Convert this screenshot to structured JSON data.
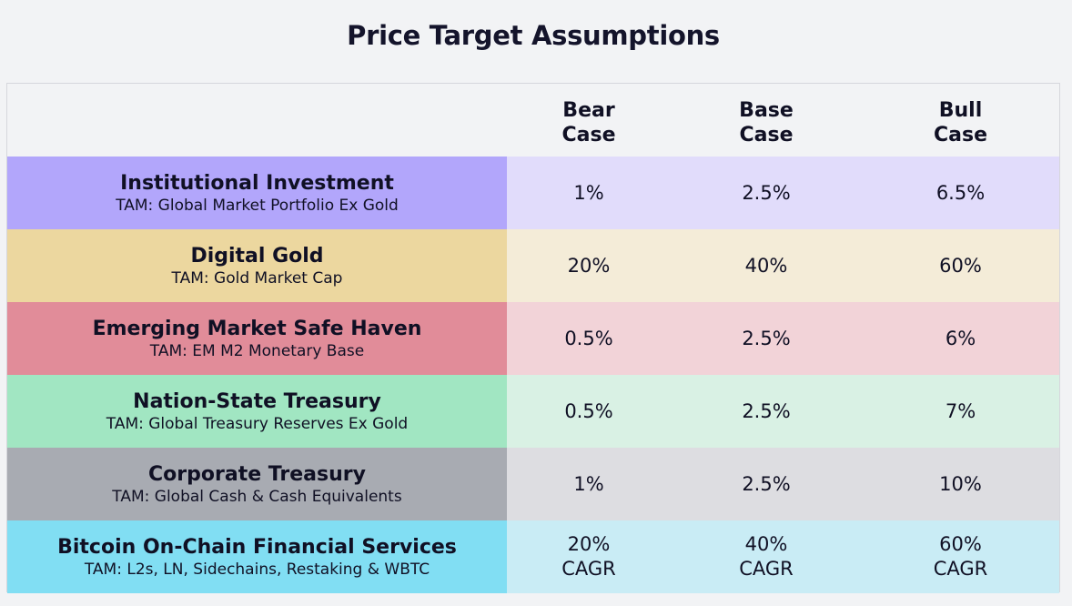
{
  "title": "Price Target Assumptions",
  "header": {
    "bear": [
      "Bear",
      "Case"
    ],
    "base": [
      "Base",
      "Case"
    ],
    "bull": [
      "Bull",
      "Case"
    ]
  },
  "rows": [
    {
      "name": "Institutional Investment",
      "tam": "TAM: Global Market Portfolio Ex Gold",
      "bear": "1%",
      "base": "2.5%",
      "bull": "6.5%",
      "label_color": "#b2a6fb",
      "value_color": "#e1dcfb"
    },
    {
      "name": "Digital Gold",
      "tam": "TAM: Gold Market Cap",
      "bear": "20%",
      "base": "40%",
      "bull": "60%",
      "label_color": "#ecd79f",
      "value_color": "#f4ecd8"
    },
    {
      "name": "Emerging Market Safe Haven",
      "tam": "TAM: EM M2 Monetary Base",
      "bear": "0.5%",
      "base": "2.5%",
      "bull": "6%",
      "label_color": "#e18c99",
      "value_color": "#f2d3d8"
    },
    {
      "name": "Nation-State Treasury",
      "tam": "TAM: Global Treasury Reserves Ex Gold",
      "bear": "0.5%",
      "base": "2.5%",
      "bull": "7%",
      "label_color": "#a1e6c2",
      "value_color": "#d9f1e4"
    },
    {
      "name": "Corporate Treasury",
      "tam": "TAM: Global Cash & Cash Equivalents",
      "bear": "1%",
      "base": "2.5%",
      "bull": "10%",
      "label_color": "#a8abb2",
      "value_color": "#dddde1"
    },
    {
      "name": "Bitcoin On-Chain Financial Services",
      "tam": "TAM: L2s, LN, Sidechains, Restaking & WBTC",
      "bear": [
        "20%",
        "CAGR"
      ],
      "base": [
        "40%",
        "CAGR"
      ],
      "bull": [
        "60%",
        "CAGR"
      ],
      "label_color": "#81def3",
      "value_color": "#c9ecf5"
    }
  ],
  "chart_data": {
    "type": "table",
    "title": "Price Target Assumptions",
    "columns": [
      "",
      "Bear Case",
      "Base Case",
      "Bull Case"
    ],
    "rows": [
      [
        "Institutional Investment — TAM: Global Market Portfolio Ex Gold",
        "1%",
        "2.5%",
        "6.5%"
      ],
      [
        "Digital Gold — TAM: Gold Market Cap",
        "20%",
        "40%",
        "60%"
      ],
      [
        "Emerging Market Safe Haven — TAM: EM M2 Monetary Base",
        "0.5%",
        "2.5%",
        "6%"
      ],
      [
        "Nation-State Treasury — TAM: Global Treasury Reserves Ex Gold",
        "0.5%",
        "2.5%",
        "7%"
      ],
      [
        "Corporate Treasury — TAM: Global Cash & Cash Equivalents",
        "1%",
        "2.5%",
        "10%"
      ],
      [
        "Bitcoin On-Chain Financial Services — TAM: L2s, LN, Sidechains, Restaking & WBTC",
        "20% CAGR",
        "40% CAGR",
        "60% CAGR"
      ]
    ]
  }
}
